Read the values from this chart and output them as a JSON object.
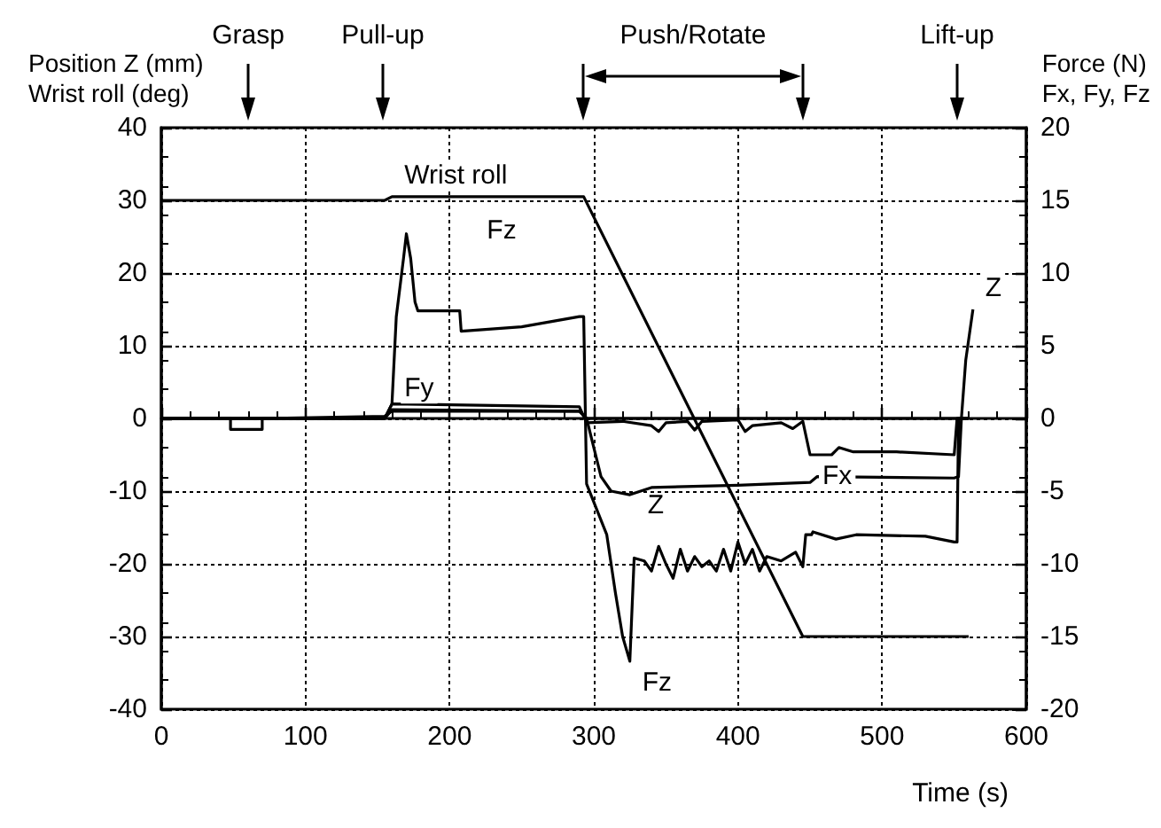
{
  "chart_data": {
    "type": "line",
    "xlabel": "Time (s)",
    "ylabel": "Position Z (mm)\nWrist roll (deg)",
    "y2label": "Force (N)\nFx, Fy, Fz",
    "xlim": [
      0,
      600
    ],
    "xticks": [
      0,
      100,
      200,
      300,
      400,
      500,
      600
    ],
    "ylim": [
      -40,
      40
    ],
    "yticks": [
      -40,
      -30,
      -20,
      -10,
      0,
      10,
      20,
      30,
      40
    ],
    "y2lim": [
      -20,
      20
    ],
    "y2ticks": [
      -20,
      -15,
      -10,
      -5,
      0,
      5,
      10,
      15,
      20
    ],
    "grid": true,
    "marker": "none",
    "line_style": "solid",
    "series": [
      {
        "name": "Wrist roll",
        "color": "#000000",
        "x": [
          0,
          155,
          160,
          293,
          445,
          560
        ],
        "values": [
          30,
          30,
          30.5,
          30.5,
          -30,
          -30
        ]
      },
      {
        "name": "Z",
        "color": "#000000",
        "x": [
          0,
          48,
          48,
          70,
          70,
          155,
          160,
          290,
          295,
          300,
          305,
          312,
          325,
          340,
          400,
          450,
          455,
          550,
          553,
          555,
          558,
          563
        ],
        "values": [
          0,
          0,
          -1.5,
          -1.5,
          0,
          0.3,
          1,
          1,
          0,
          -4,
          -8,
          -10,
          -10.5,
          -9.5,
          -9.2,
          -8.8,
          -8,
          -8.2,
          -8,
          0,
          8,
          15
        ]
      },
      {
        "name": "Fz",
        "color": "#000000",
        "axis": "y2",
        "x": [
          0,
          155,
          160,
          163,
          168,
          170,
          173,
          176,
          178,
          207,
          208,
          250,
          290,
          293,
          295,
          309,
          315,
          320,
          325,
          328,
          335,
          340,
          345,
          350,
          355,
          360,
          365,
          370,
          375,
          380,
          385,
          390,
          395,
          400,
          405,
          410,
          415,
          420,
          430,
          440,
          445,
          447,
          451,
          452,
          468,
          482,
          530,
          550,
          552,
          553,
          560
        ],
        "values": [
          0,
          0,
          1,
          7,
          11,
          12.7,
          11,
          8,
          7.4,
          7.4,
          6,
          6.3,
          7,
          7,
          -4.5,
          -8,
          -12,
          -15,
          -16.7,
          -9.6,
          -9.8,
          -10.5,
          -8.8,
          -10,
          -11,
          -9,
          -10.5,
          -9.5,
          -10.2,
          -9.8,
          -10.5,
          -9,
          -10.5,
          -8.5,
          -10,
          -9,
          -10.5,
          -9.5,
          -9.8,
          -9.2,
          -10.2,
          -8,
          -8,
          -7.8,
          -8.3,
          -8,
          -8.1,
          -8.5,
          -8.5,
          0,
          0
        ]
      },
      {
        "name": "Fx",
        "color": "#000000",
        "axis": "y2",
        "x": [
          0,
          155,
          160,
          290,
          295,
          320,
          340,
          345,
          350,
          365,
          370,
          375,
          400,
          405,
          410,
          430,
          438,
          445,
          450,
          465,
          470,
          480,
          510,
          550,
          552,
          560
        ],
        "values": [
          0,
          0,
          1,
          0.8,
          -0.3,
          -0.2,
          -0.5,
          -0.9,
          -0.3,
          -0.2,
          -0.8,
          -0.2,
          -0.1,
          -0.9,
          -0.5,
          -0.3,
          -0.7,
          -0.2,
          -2.5,
          -2.5,
          -2,
          -2.3,
          -2.3,
          -2.5,
          0,
          0
        ]
      },
      {
        "name": "Fy",
        "color": "#000000",
        "axis": "y2",
        "x": [
          0,
          155,
          160,
          290,
          295,
          560
        ],
        "values": [
          0,
          0,
          0.6,
          0.5,
          0,
          0
        ]
      }
    ],
    "annotations": [
      "Grasp",
      "Pull-up",
      "Push/Rotate",
      "Lift-up",
      "Fz",
      "Z"
    ]
  }
}
